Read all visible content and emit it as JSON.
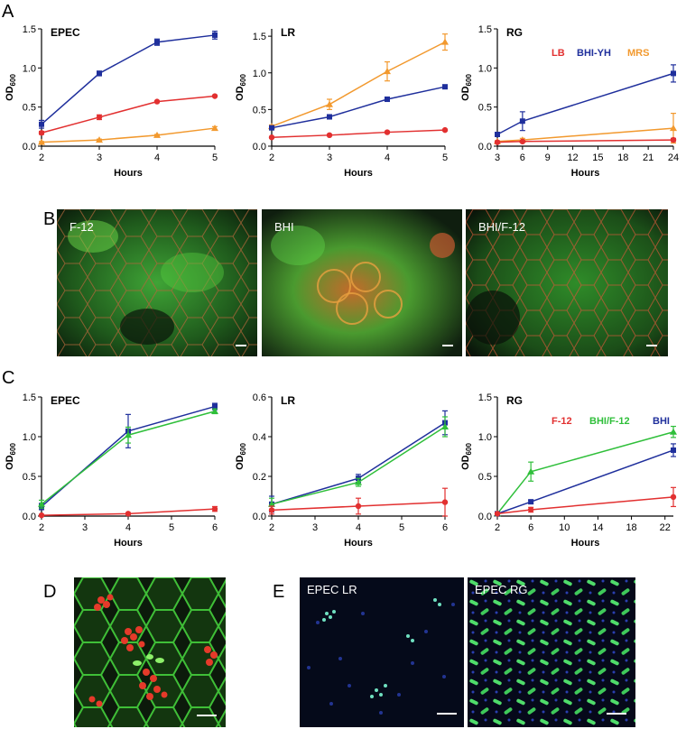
{
  "panels": [
    "A",
    "B",
    "C",
    "D",
    "E"
  ],
  "colors": {
    "red": "#e23030",
    "blue": "#1f2f9c",
    "orange": "#f2992e",
    "green": "#2fbf3a"
  },
  "chart_data": [
    {
      "id": "A-EPEC",
      "type": "line",
      "title": "EPEC",
      "xlabel": "Hours",
      "ylabel": "OD600",
      "xlim": [
        2,
        5
      ],
      "ylim": [
        0,
        1.5
      ],
      "xticks": [
        "2",
        "3",
        "4",
        "5"
      ],
      "yticks": [
        "0.0",
        "0.5",
        "1.0",
        "1.5"
      ],
      "x": [
        2,
        3,
        4,
        5
      ],
      "series": [
        {
          "color": "#1f2f9c",
          "marker": "square",
          "values": [
            0.28,
            0.93,
            1.33,
            1.42
          ],
          "err": [
            0.05,
            0.03,
            0.04,
            0.05
          ]
        },
        {
          "color": "#e23030",
          "marker": "circle",
          "values": [
            0.17,
            0.37,
            0.57,
            0.64
          ],
          "err": [
            0.02,
            0.03,
            0.01,
            0.01
          ]
        },
        {
          "color": "#f2992e",
          "marker": "triangle",
          "values": [
            0.05,
            0.08,
            0.14,
            0.23
          ],
          "err": [
            0.01,
            0.01,
            0.01,
            0.02
          ]
        }
      ]
    },
    {
      "id": "A-LR",
      "type": "line",
      "title": "LR",
      "xlabel": "Hours",
      "ylabel": "OD600",
      "xlim": [
        2,
        5
      ],
      "ylim": [
        0,
        1.6
      ],
      "xticks": [
        "2",
        "3",
        "4",
        "5"
      ],
      "yticks": [
        "0.0",
        "0.5",
        "1.0",
        "1.5"
      ],
      "ytickvals": [
        0,
        0.5,
        1.0,
        1.5
      ],
      "x": [
        2,
        3,
        4,
        5
      ],
      "series": [
        {
          "color": "#f2992e",
          "marker": "triangle",
          "values": [
            0.27,
            0.57,
            1.02,
            1.42
          ],
          "err": [
            0.02,
            0.07,
            0.13,
            0.11
          ]
        },
        {
          "color": "#1f2f9c",
          "marker": "square",
          "values": [
            0.25,
            0.4,
            0.64,
            0.81
          ],
          "err": [
            0.01,
            0.03,
            0.03,
            0.01
          ]
        },
        {
          "color": "#e23030",
          "marker": "circle",
          "values": [
            0.12,
            0.15,
            0.19,
            0.22
          ],
          "err": [
            0.01,
            0.01,
            0.01,
            0.01
          ]
        }
      ]
    },
    {
      "id": "A-RG",
      "type": "line",
      "title": "RG",
      "xlabel": "Hours",
      "ylabel": "OD600",
      "xlim": [
        3,
        24
      ],
      "ylim": [
        0,
        1.5
      ],
      "xticks": [
        "3",
        "6",
        "9",
        "12",
        "15",
        "18",
        "21",
        "24"
      ],
      "yticks": [
        "0.0",
        "0.5",
        "1.0",
        "1.5"
      ],
      "legend": [
        {
          "label": "LB",
          "color": "#e23030"
        },
        {
          "label": "BHI-YH",
          "color": "#1f2f9c"
        },
        {
          "label": "MRS",
          "color": "#f2992e"
        }
      ],
      "x": [
        3,
        6,
        24
      ],
      "series": [
        {
          "color": "#1f2f9c",
          "marker": "square",
          "values": [
            0.15,
            0.32,
            0.93
          ],
          "err": [
            0.02,
            0.12,
            0.11
          ]
        },
        {
          "color": "#f2992e",
          "marker": "triangle",
          "values": [
            0.06,
            0.08,
            0.23
          ],
          "err": [
            0.01,
            0.02,
            0.19
          ]
        },
        {
          "color": "#e23030",
          "marker": "circle",
          "values": [
            0.05,
            0.06,
            0.08
          ],
          "err": [
            0.01,
            0.01,
            0.02
          ]
        }
      ]
    },
    {
      "id": "C-EPEC",
      "type": "line",
      "title": "EPEC",
      "xlabel": "Hours",
      "ylabel": "OD600",
      "xlim": [
        2,
        6
      ],
      "ylim": [
        0,
        1.5
      ],
      "xticks": [
        "2",
        "3",
        "4",
        "5",
        "6"
      ],
      "yticks": [
        "0.0",
        "0.5",
        "1.0",
        "1.5"
      ],
      "x": [
        2,
        4,
        6
      ],
      "series": [
        {
          "color": "#1f2f9c",
          "marker": "square",
          "values": [
            0.12,
            1.07,
            1.38
          ],
          "err": [
            0.04,
            0.21,
            0.04
          ]
        },
        {
          "color": "#2fbf3a",
          "marker": "triangle",
          "values": [
            0.15,
            1.02,
            1.32
          ],
          "err": [
            0.05,
            0.1,
            0.03
          ]
        },
        {
          "color": "#e23030",
          "marker": "circle",
          "values": [
            0.01,
            0.03,
            0.09
          ],
          "err": [
            0.01,
            0.01,
            0.03
          ]
        }
      ]
    },
    {
      "id": "C-LR",
      "type": "line",
      "title": "LR",
      "xlabel": "Hours",
      "ylabel": "OD600",
      "xlim": [
        2,
        6
      ],
      "ylim": [
        0,
        0.6
      ],
      "xticks": [
        "2",
        "3",
        "4",
        "5",
        "6"
      ],
      "yticks": [
        "0.0",
        "0.2",
        "0.4",
        "0.6"
      ],
      "x": [
        2,
        4,
        6
      ],
      "series": [
        {
          "color": "#1f2f9c",
          "marker": "square",
          "values": [
            0.06,
            0.19,
            0.47
          ],
          "err": [
            0.04,
            0.02,
            0.06
          ]
        },
        {
          "color": "#2fbf3a",
          "marker": "triangle",
          "values": [
            0.06,
            0.17,
            0.45
          ],
          "err": [
            0.03,
            0.02,
            0.05
          ]
        },
        {
          "color": "#e23030",
          "marker": "circle",
          "values": [
            0.03,
            0.05,
            0.07
          ],
          "err": [
            0.02,
            0.04,
            0.07
          ]
        }
      ]
    },
    {
      "id": "C-RG",
      "type": "line",
      "title": "RG",
      "xlabel": "Hours",
      "ylabel": "OD600",
      "xlim": [
        2,
        23
      ],
      "ylim": [
        0,
        1.5
      ],
      "xticks": [
        "2",
        "6",
        "10",
        "14",
        "18",
        "22"
      ],
      "yticks": [
        "0.0",
        "0.5",
        "1.0",
        "1.5"
      ],
      "legend": [
        {
          "label": "F-12",
          "color": "#e23030"
        },
        {
          "label": "BHI/F-12",
          "color": "#2fbf3a"
        },
        {
          "label": "BHI",
          "color": "#1f2f9c"
        }
      ],
      "x": [
        2,
        6,
        23
      ],
      "series": [
        {
          "color": "#2fbf3a",
          "marker": "triangle",
          "values": [
            0.03,
            0.56,
            1.06
          ],
          "err": [
            0.02,
            0.12,
            0.07
          ]
        },
        {
          "color": "#1f2f9c",
          "marker": "square",
          "values": [
            0.03,
            0.18,
            0.83
          ],
          "err": [
            0.01,
            0.02,
            0.08
          ]
        },
        {
          "color": "#e23030",
          "marker": "circle",
          "values": [
            0.03,
            0.08,
            0.24
          ],
          "err": [
            0.01,
            0.03,
            0.12
          ]
        }
      ]
    }
  ],
  "micrographs_b": [
    {
      "label": "F-12"
    },
    {
      "label": "BHI"
    },
    {
      "label": "BHI/F-12"
    }
  ],
  "micrographs_e": [
    {
      "label": "EPEC LR"
    },
    {
      "label": "EPEC RG"
    }
  ]
}
